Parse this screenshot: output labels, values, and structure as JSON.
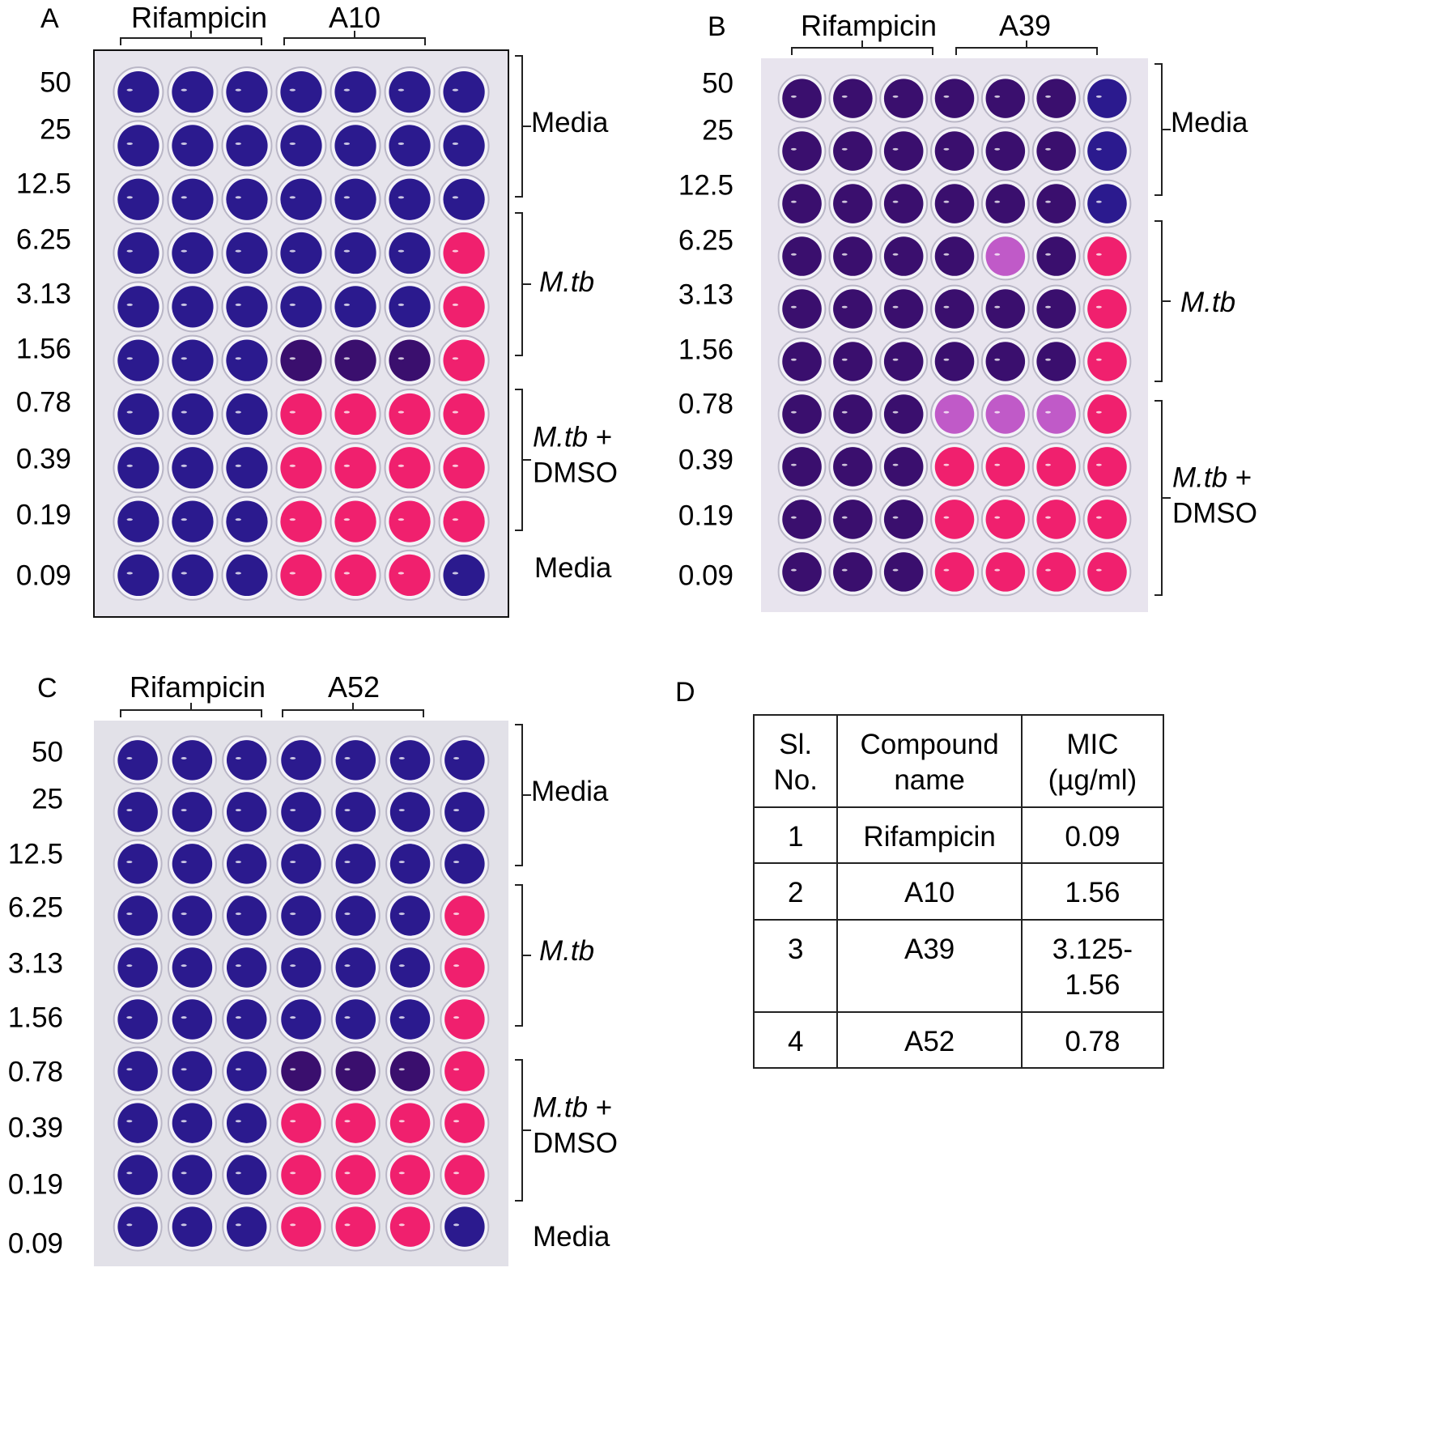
{
  "concentrations": [
    "50",
    "25",
    "12.5",
    "6.25",
    "3.13",
    "1.56",
    "0.78",
    "0.39",
    "0.19",
    "0.09"
  ],
  "colors": {
    "blue_well": "#2b1a8e",
    "purple_well": "#3a0f6e",
    "pink_well": "#f0206e",
    "plate_bg": "#e6e4ec"
  },
  "panels": [
    {
      "letter": "A",
      "drug_label": "Rifampicin",
      "compound_label": "A10",
      "side_labels": {
        "media_top": "Media",
        "mtb": "M.tb",
        "mtb_dmso_1": "M.tb",
        "mtb_dmso_plus": " +",
        "mtb_dmso_2": "DMSO",
        "media_bottom": "Media"
      },
      "wells": [
        "BBBBBBB",
        "BBBBBBB",
        "BBBBBBB",
        "BBBBBBP",
        "BBBBBBP",
        "BBBVVVP",
        "BBBPPPP",
        "BBBPPPP",
        "BBBPPPP",
        "BBBPPPB"
      ]
    },
    {
      "letter": "B",
      "drug_label": "Rifampicin",
      "compound_label": "A39",
      "side_labels": {
        "media_top": "Media",
        "mtb": "M.tb",
        "mtb_dmso_1": "M.tb",
        "mtb_dmso_plus": " +",
        "mtb_dmso_2": "DMSO"
      },
      "wells": [
        "VVVVVVB",
        "VVVVVVB",
        "VVVVVVB",
        "VVVVLVP",
        "VVVVVVP",
        "VVVVVVP",
        "VVVLLLP",
        "VVVPPPP",
        "VVVPPPP",
        "VVVPPPP"
      ]
    },
    {
      "letter": "C",
      "drug_label": "Rifampicin",
      "compound_label": "A52",
      "side_labels": {
        "media_top": "Media",
        "mtb": "M.tb",
        "mtb_dmso_1": "M.tb",
        "mtb_dmso_plus": " +",
        "mtb_dmso_2": "DMSO",
        "media_bottom": "Media"
      },
      "wells": [
        "BBBBBBB",
        "BBBBBBB",
        "BBBBBBB",
        "BBBBBBP",
        "BBBBBBP",
        "BBBBBBP",
        "BBBVVVP",
        "BBBPPPP",
        "BBBPPPP",
        "BBBPPPB"
      ]
    }
  ],
  "panel_d": {
    "letter": "D",
    "headers": [
      [
        "Sl.",
        "No."
      ],
      [
        "Compound",
        "name"
      ],
      [
        "MIC",
        "(µg/ml)"
      ]
    ],
    "rows": [
      {
        "no": "1",
        "name": "Rifampicin",
        "mic_1": "0.09",
        "mic_2": ""
      },
      {
        "no": "2",
        "name": "A10",
        "mic_1": "1.56",
        "mic_2": ""
      },
      {
        "no": "3",
        "name": "A39",
        "mic_1": "3.125-",
        "mic_2": "1.56"
      },
      {
        "no": "4",
        "name": "A52",
        "mic_1": "0.78",
        "mic_2": ""
      }
    ]
  }
}
